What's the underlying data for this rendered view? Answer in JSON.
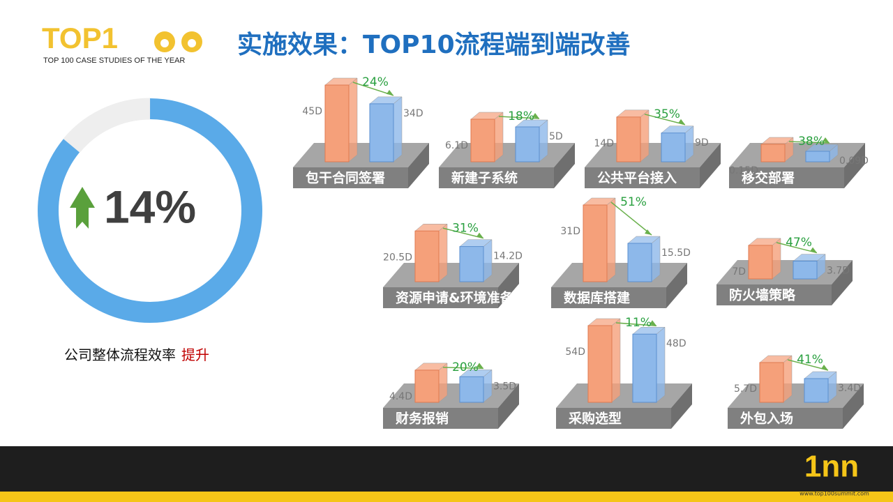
{
  "header": {
    "logo_title": "TOP1",
    "logo_subtitle": "TOP 100 CASE STUDIES OF THE YEAR",
    "title": "实施效果：TOP10流程端到端改善"
  },
  "summary": {
    "caption": "公司整体流程效率",
    "highlight": "提升"
  },
  "footer": {
    "logo": "1nn",
    "url": "www.top100summit.com"
  },
  "chart_data": [
    {
      "type": "donut",
      "value": 14,
      "value_label": "14%",
      "max": 100,
      "color": "#5aaae8",
      "rest_color": "#eeeeee"
    },
    {
      "type": "bar3d",
      "title": "包干合同签署",
      "values": [
        45,
        34
      ],
      "value_labels": [
        "45D",
        "34D"
      ],
      "annotation": "24%",
      "colors": [
        "#f5a07a",
        "#8db8ea"
      ],
      "ylim": [
        0,
        45
      ]
    },
    {
      "type": "bar3d",
      "title": "新建子系统",
      "values": [
        6.1,
        5
      ],
      "value_labels": [
        "6.1D",
        "5D"
      ],
      "annotation": "18%",
      "colors": [
        "#f5a07a",
        "#8db8ea"
      ],
      "ylim": [
        0,
        11
      ]
    },
    {
      "type": "bar3d",
      "title": "公共平台接入",
      "values": [
        14,
        9
      ],
      "value_labels": [
        "14D",
        "9D"
      ],
      "annotation": "35%",
      "colors": [
        "#f5a07a",
        "#8db8ea"
      ],
      "ylim": [
        0,
        24
      ]
    },
    {
      "type": "bar3d",
      "title": "移交部署",
      "values": [
        0.15,
        0.09
      ],
      "value_labels": [
        "0.15D",
        "0.09D"
      ],
      "annotation": "38%",
      "colors": [
        "#f5a07a",
        "#8db8ea"
      ],
      "ylim": [
        0,
        0.66
      ]
    },
    {
      "type": "bar3d",
      "title": "资源申请&环境准备",
      "values": [
        20.5,
        14.2
      ],
      "value_labels": [
        "20.5D",
        "14.2D"
      ],
      "annotation": "31%",
      "colors": [
        "#f5a07a",
        "#8db8ea"
      ],
      "ylim": [
        0,
        31
      ]
    },
    {
      "type": "bar3d",
      "title": "数据库搭建",
      "values": [
        31,
        15.5
      ],
      "value_labels": [
        "31D",
        "15.5D"
      ],
      "annotation": "51%",
      "colors": [
        "#f5a07a",
        "#8db8ea"
      ],
      "ylim": [
        0,
        31
      ]
    },
    {
      "type": "bar3d",
      "title": "防火墙策略",
      "values": [
        7,
        3.7
      ],
      "value_labels": [
        "7D",
        "3.7D"
      ],
      "annotation": "47%",
      "colors": [
        "#f5a07a",
        "#8db8ea"
      ],
      "ylim": [
        0,
        16
      ]
    },
    {
      "type": "bar3d",
      "title": "财务报销",
      "values": [
        4.4,
        3.5
      ],
      "value_labels": [
        "4.4D",
        "3.5D"
      ],
      "annotation": "20%",
      "colors": [
        "#f5a07a",
        "#8db8ea"
      ],
      "ylim": [
        0,
        10.5
      ]
    },
    {
      "type": "bar3d",
      "title": "采购选型",
      "values": [
        54,
        48
      ],
      "value_labels": [
        "54D",
        "48D"
      ],
      "annotation": "11%",
      "colors": [
        "#f5a07a",
        "#8db8ea"
      ],
      "ylim": [
        0,
        54
      ]
    },
    {
      "type": "bar3d",
      "title": "外包入场",
      "values": [
        5.7,
        3.4
      ],
      "value_labels": [
        "5.7D",
        "3.4D"
      ],
      "annotation": "41%",
      "colors": [
        "#f5a07a",
        "#8db8ea"
      ],
      "ylim": [
        0,
        11
      ]
    }
  ]
}
